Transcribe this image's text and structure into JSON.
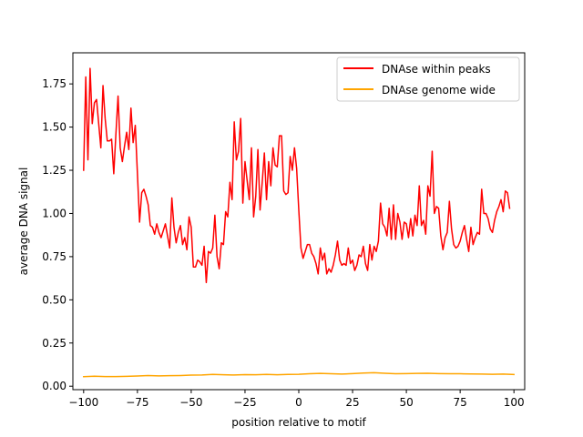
{
  "chart_data": {
    "type": "line",
    "title": "",
    "xlabel": "position relative to motif",
    "ylabel": "average DNA signal",
    "xlim": [
      -105,
      105
    ],
    "ylim": [
      -0.02,
      1.93
    ],
    "xticks": [
      -100,
      -75,
      -50,
      -25,
      0,
      25,
      50,
      75,
      100
    ],
    "xtick_labels": [
      "−100",
      "−75",
      "−50",
      "−25",
      "0",
      "25",
      "50",
      "75",
      "100"
    ],
    "yticks": [
      0.0,
      0.25,
      0.5,
      0.75,
      1.0,
      1.25,
      1.5,
      1.75
    ],
    "ytick_labels": [
      "0.00",
      "0.25",
      "0.50",
      "0.75",
      "1.00",
      "1.25",
      "1.50",
      "1.75"
    ],
    "grid": false,
    "legend_position": "top-right",
    "series": [
      {
        "name": "DNAse within peaks",
        "color": "#ff0000",
        "points": [
          [
            -100,
            1.25
          ],
          [
            -99,
            1.79
          ],
          [
            -98,
            1.31
          ],
          [
            -97,
            1.84
          ],
          [
            -96,
            1.52
          ],
          [
            -95,
            1.64
          ],
          [
            -94,
            1.66
          ],
          [
            -93,
            1.52
          ],
          [
            -92,
            1.38
          ],
          [
            -91,
            1.74
          ],
          [
            -90,
            1.55
          ],
          [
            -89,
            1.42
          ],
          [
            -88,
            1.42
          ],
          [
            -87,
            1.43
          ],
          [
            -86,
            1.23
          ],
          [
            -85,
            1.46
          ],
          [
            -84,
            1.68
          ],
          [
            -83,
            1.38
          ],
          [
            -82,
            1.3
          ],
          [
            -81,
            1.39
          ],
          [
            -80,
            1.47
          ],
          [
            -79,
            1.37
          ],
          [
            -78,
            1.61
          ],
          [
            -77,
            1.41
          ],
          [
            -76,
            1.51
          ],
          [
            -75,
            1.23
          ],
          [
            -74,
            0.95
          ],
          [
            -73,
            1.12
          ],
          [
            -72,
            1.14
          ],
          [
            -71,
            1.1
          ],
          [
            -70,
            1.05
          ],
          [
            -69,
            0.93
          ],
          [
            -68,
            0.92
          ],
          [
            -67,
            0.88
          ],
          [
            -66,
            0.94
          ],
          [
            -65,
            0.89
          ],
          [
            -64,
            0.86
          ],
          [
            -63,
            0.9
          ],
          [
            -62,
            0.94
          ],
          [
            -61,
            0.87
          ],
          [
            -60,
            0.8
          ],
          [
            -59,
            1.09
          ],
          [
            -58,
            0.92
          ],
          [
            -57,
            0.83
          ],
          [
            -56,
            0.89
          ],
          [
            -55,
            0.93
          ],
          [
            -54,
            0.82
          ],
          [
            -53,
            0.86
          ],
          [
            -52,
            0.79
          ],
          [
            -51,
            0.98
          ],
          [
            -50,
            0.92
          ],
          [
            -49,
            0.69
          ],
          [
            -48,
            0.69
          ],
          [
            -47,
            0.73
          ],
          [
            -46,
            0.72
          ],
          [
            -45,
            0.7
          ],
          [
            -44,
            0.81
          ],
          [
            -43,
            0.6
          ],
          [
            -42,
            0.78
          ],
          [
            -41,
            0.77
          ],
          [
            -40,
            0.8
          ],
          [
            -39,
            0.99
          ],
          [
            -38,
            0.75
          ],
          [
            -37,
            0.68
          ],
          [
            -36,
            0.83
          ],
          [
            -35,
            0.82
          ],
          [
            -34,
            1.01
          ],
          [
            -33,
            0.98
          ],
          [
            -32,
            1.18
          ],
          [
            -31,
            1.08
          ],
          [
            -30,
            1.53
          ],
          [
            -29,
            1.31
          ],
          [
            -28,
            1.36
          ],
          [
            -27,
            1.55
          ],
          [
            -26,
            1.06
          ],
          [
            -25,
            1.3
          ],
          [
            -24,
            1.19
          ],
          [
            -23,
            1.08
          ],
          [
            -22,
            1.38
          ],
          [
            -21,
            0.98
          ],
          [
            -20,
            1.1
          ],
          [
            -19,
            1.37
          ],
          [
            -18,
            1.02
          ],
          [
            -17,
            1.18
          ],
          [
            -16,
            1.35
          ],
          [
            -15,
            1.08
          ],
          [
            -14,
            1.3
          ],
          [
            -13,
            1.16
          ],
          [
            -12,
            1.38
          ],
          [
            -11,
            1.28
          ],
          [
            -10,
            1.27
          ],
          [
            -9,
            1.45
          ],
          [
            -8,
            1.45
          ],
          [
            -7,
            1.13
          ],
          [
            -6,
            1.11
          ],
          [
            -5,
            1.12
          ],
          [
            -4,
            1.33
          ],
          [
            -3,
            1.25
          ],
          [
            -2,
            1.38
          ],
          [
            -1,
            1.26
          ],
          [
            0,
            1.02
          ],
          [
            1,
            0.8
          ],
          [
            2,
            0.74
          ],
          [
            3,
            0.78
          ],
          [
            4,
            0.82
          ],
          [
            5,
            0.82
          ],
          [
            6,
            0.77
          ],
          [
            7,
            0.75
          ],
          [
            8,
            0.71
          ],
          [
            9,
            0.65
          ],
          [
            10,
            0.8
          ],
          [
            11,
            0.73
          ],
          [
            12,
            0.77
          ],
          [
            13,
            0.65
          ],
          [
            14,
            0.68
          ],
          [
            15,
            0.66
          ],
          [
            16,
            0.7
          ],
          [
            17,
            0.76
          ],
          [
            18,
            0.84
          ],
          [
            19,
            0.73
          ],
          [
            20,
            0.7
          ],
          [
            21,
            0.71
          ],
          [
            22,
            0.7
          ],
          [
            23,
            0.8
          ],
          [
            24,
            0.71
          ],
          [
            25,
            0.73
          ],
          [
            26,
            0.67
          ],
          [
            27,
            0.7
          ],
          [
            28,
            0.76
          ],
          [
            29,
            0.75
          ],
          [
            30,
            0.81
          ],
          [
            31,
            0.71
          ],
          [
            32,
            0.67
          ],
          [
            33,
            0.82
          ],
          [
            34,
            0.73
          ],
          [
            35,
            0.81
          ],
          [
            36,
            0.78
          ],
          [
            37,
            0.84
          ],
          [
            38,
            1.06
          ],
          [
            39,
            0.94
          ],
          [
            40,
            0.92
          ],
          [
            41,
            0.87
          ],
          [
            42,
            1.03
          ],
          [
            43,
            0.85
          ],
          [
            44,
            1.05
          ],
          [
            45,
            0.85
          ],
          [
            46,
            1.0
          ],
          [
            47,
            0.95
          ],
          [
            48,
            0.85
          ],
          [
            49,
            0.95
          ],
          [
            50,
            0.94
          ],
          [
            51,
            0.86
          ],
          [
            52,
            0.97
          ],
          [
            53,
            0.87
          ],
          [
            54,
            0.99
          ],
          [
            55,
            0.93
          ],
          [
            56,
            1.16
          ],
          [
            57,
            0.93
          ],
          [
            58,
            0.96
          ],
          [
            59,
            0.88
          ],
          [
            60,
            1.16
          ],
          [
            61,
            1.1
          ],
          [
            62,
            1.36
          ],
          [
            63,
            1.0
          ],
          [
            64,
            1.04
          ],
          [
            65,
            1.03
          ],
          [
            66,
            0.87
          ],
          [
            67,
            0.79
          ],
          [
            68,
            0.86
          ],
          [
            69,
            0.89
          ],
          [
            70,
            1.07
          ],
          [
            71,
            0.91
          ],
          [
            72,
            0.82
          ],
          [
            73,
            0.8
          ],
          [
            74,
            0.81
          ],
          [
            75,
            0.84
          ],
          [
            76,
            0.89
          ],
          [
            77,
            0.93
          ],
          [
            78,
            0.85
          ],
          [
            79,
            0.78
          ],
          [
            80,
            0.92
          ],
          [
            81,
            0.82
          ],
          [
            82,
            0.86
          ],
          [
            83,
            0.89
          ],
          [
            84,
            0.88
          ],
          [
            85,
            1.14
          ],
          [
            86,
            1.0
          ],
          [
            87,
            1.0
          ],
          [
            88,
            0.97
          ],
          [
            89,
            0.91
          ],
          [
            90,
            0.89
          ],
          [
            91,
            0.96
          ],
          [
            92,
            1.01
          ],
          [
            93,
            1.04
          ],
          [
            94,
            1.08
          ],
          [
            95,
            1.01
          ],
          [
            96,
            1.13
          ],
          [
            97,
            1.12
          ],
          [
            98,
            1.03
          ]
        ]
      },
      {
        "name": "DNAse genome wide",
        "color": "#ffa500",
        "points": [
          [
            -100,
            0.055
          ],
          [
            -95,
            0.058
          ],
          [
            -90,
            0.056
          ],
          [
            -85,
            0.056
          ],
          [
            -80,
            0.057
          ],
          [
            -75,
            0.059
          ],
          [
            -70,
            0.062
          ],
          [
            -65,
            0.06
          ],
          [
            -60,
            0.061
          ],
          [
            -55,
            0.062
          ],
          [
            -50,
            0.064
          ],
          [
            -45,
            0.065
          ],
          [
            -40,
            0.068
          ],
          [
            -35,
            0.066
          ],
          [
            -30,
            0.065
          ],
          [
            -25,
            0.067
          ],
          [
            -20,
            0.066
          ],
          [
            -15,
            0.068
          ],
          [
            -10,
            0.066
          ],
          [
            -5,
            0.068
          ],
          [
            0,
            0.069
          ],
          [
            5,
            0.072
          ],
          [
            10,
            0.074
          ],
          [
            15,
            0.072
          ],
          [
            20,
            0.07
          ],
          [
            25,
            0.073
          ],
          [
            30,
            0.076
          ],
          [
            35,
            0.078
          ],
          [
            40,
            0.075
          ],
          [
            45,
            0.072
          ],
          [
            50,
            0.073
          ],
          [
            55,
            0.074
          ],
          [
            60,
            0.075
          ],
          [
            65,
            0.073
          ],
          [
            70,
            0.072
          ],
          [
            75,
            0.072
          ],
          [
            80,
            0.071
          ],
          [
            85,
            0.07
          ],
          [
            90,
            0.069
          ],
          [
            95,
            0.07
          ],
          [
            100,
            0.068
          ]
        ]
      }
    ]
  }
}
